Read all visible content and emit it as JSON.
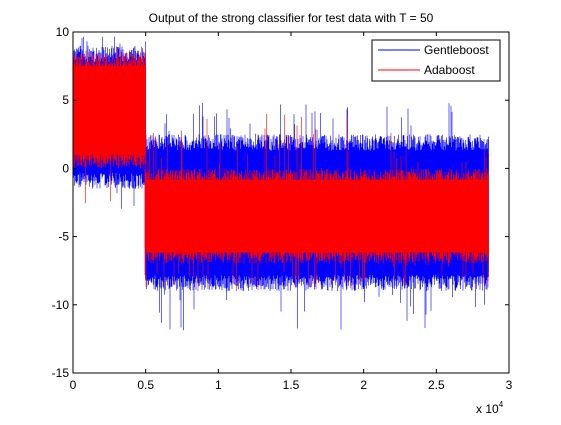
{
  "chart_data": {
    "type": "line",
    "title": "Output of the strong classifier for test data with T = 50",
    "xlabel": "",
    "ylabel": "",
    "x_exponent_label": {
      "base": "x 10",
      "exp": "4"
    },
    "xlim": [
      0,
      30000
    ],
    "ylim": [
      -15,
      10
    ],
    "xticks": [
      0,
      5000,
      10000,
      15000,
      20000,
      25000,
      30000
    ],
    "xtick_labels": [
      "0",
      "0.5",
      "1",
      "1.5",
      "2",
      "2.5",
      "3"
    ],
    "yticks": [
      -15,
      -10,
      -5,
      0,
      5,
      10
    ],
    "ytick_labels": [
      "-15",
      "-10",
      "-5",
      "0",
      "5",
      "10"
    ],
    "grid": false,
    "legend_position": "top-right",
    "x_extent": [
      0,
      28600
    ],
    "series": [
      {
        "name": "Gentleboost",
        "color": "#0000ff",
        "segments": [
          {
            "x_start": 0,
            "x_end": 5000,
            "min": -3.5,
            "max": 10,
            "band_low": -1.5,
            "band_high": 9
          },
          {
            "x_start": 5000,
            "x_end": 28600,
            "min": -12,
            "max": 5,
            "band_low": -9,
            "band_high": 2.5
          }
        ]
      },
      {
        "name": "Adaboost",
        "color": "#ff0000",
        "segments": [
          {
            "x_start": 0,
            "x_end": 5000,
            "min": -3.5,
            "max": 9,
            "band_low": 0,
            "band_high": 8.5
          },
          {
            "x_start": 5000,
            "x_end": 28600,
            "min": -9,
            "max": 4,
            "band_low": -7,
            "band_high": 0
          }
        ]
      }
    ]
  }
}
